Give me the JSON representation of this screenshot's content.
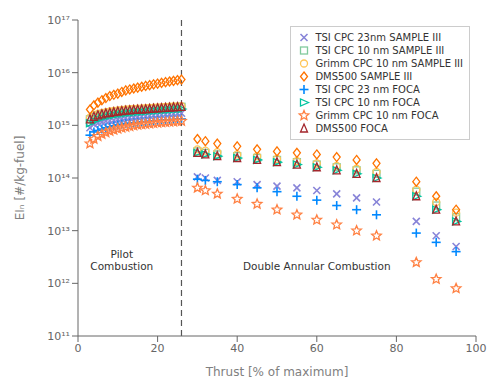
{
  "chart_data": {
    "type": "scatter",
    "xlabel": "Thrust [% of maximum]",
    "ylabel": "EIₙ [#/kg-fuel]",
    "xlim": [
      0,
      100
    ],
    "xticks": [
      0,
      20,
      40,
      60,
      80,
      100
    ],
    "ylim": [
      100000000000.0,
      1e+17
    ],
    "yticks": [
      {
        "value": 100000000000.0,
        "label": "10¹¹"
      },
      {
        "value": 1000000000000.0,
        "label": "10¹²"
      },
      {
        "value": 10000000000000.0,
        "label": "10¹³"
      },
      {
        "value": 100000000000000.0,
        "label": "10¹⁴"
      },
      {
        "value": 1000000000000000.0,
        "label": "10¹⁵"
      },
      {
        "value": 1e+16,
        "label": "10¹⁶"
      },
      {
        "value": 1e+17,
        "label": "10¹⁷"
      }
    ],
    "log": "y",
    "grid": false,
    "legend": "upper right",
    "reference_lines": [
      {
        "x": 26,
        "line_style": "dashed"
      }
    ],
    "annotations": [
      {
        "text": "Pilot\nCombustion",
        "x": 11,
        "y": 1600000000000.0
      },
      {
        "text": "Double Annular Combustion",
        "x": 60,
        "y": 1600000000000.0
      }
    ],
    "series": [
      {
        "name": "TSI CPC 23nm SAMPLE III",
        "marker": "x",
        "color": "#8884d8",
        "x": [
          3,
          4,
          5,
          6,
          7,
          8,
          9,
          10,
          11,
          12,
          13,
          14,
          15,
          16,
          17,
          18,
          19,
          20,
          21,
          22,
          23,
          24,
          25,
          26,
          30,
          32,
          35,
          40,
          45,
          50,
          55,
          60,
          65,
          70,
          75,
          85,
          90,
          95
        ],
        "values": [
          900000000000000.0,
          1050000000000000.0,
          1100000000000000.0,
          1150000000000000.0,
          1200000000000000.0,
          1220000000000000.0,
          1250000000000000.0,
          1300000000000000.0,
          1330000000000000.0,
          1380000000000000.0,
          1400000000000000.0,
          1420000000000000.0,
          1450000000000000.0,
          1470000000000000.0,
          1500000000000000.0,
          1520000000000000.0,
          1550000000000000.0,
          1570000000000000.0,
          1590000000000000.0,
          1620000000000000.0,
          1640000000000000.0,
          1660000000000000.0,
          1680000000000000.0,
          1700000000000000.0,
          105000000000000.0,
          100000000000000.0,
          90000000000000.0,
          85000000000000.0,
          75000000000000.0,
          70000000000000.0,
          65000000000000.0,
          58000000000000.0,
          50000000000000.0,
          42000000000000.0,
          35000000000000.0,
          15000000000000.0,
          8000000000000.0,
          5000000000000.0
        ]
      },
      {
        "name": "TSI CPC 10 nm SAMPLE III",
        "marker": "square",
        "color": "#82ca9d",
        "x": [
          3,
          4,
          5,
          6,
          7,
          8,
          9,
          10,
          11,
          12,
          13,
          14,
          15,
          16,
          17,
          18,
          19,
          20,
          21,
          22,
          23,
          24,
          25,
          26,
          30,
          32,
          35,
          40,
          45,
          50,
          55,
          60,
          65,
          70,
          75,
          85,
          90,
          95
        ],
        "values": [
          1300000000000000.0,
          1450000000000000.0,
          1550000000000000.0,
          1620000000000000.0,
          1680000000000000.0,
          1730000000000000.0,
          1780000000000000.0,
          1830000000000000.0,
          1870000000000000.0,
          1900000000000000.0,
          1930000000000000.0,
          1960000000000000.0,
          1980000000000000.0,
          2000000000000000.0,
          2020000000000000.0,
          2050000000000000.0,
          2070000000000000.0,
          2100000000000000.0,
          2120000000000000.0,
          2150000000000000.0,
          2170000000000000.0,
          2200000000000000.0,
          2220000000000000.0,
          2250000000000000.0,
          320000000000000.0,
          300000000000000.0,
          280000000000000.0,
          260000000000000.0,
          240000000000000.0,
          220000000000000.0,
          200000000000000.0,
          180000000000000.0,
          160000000000000.0,
          140000000000000.0,
          120000000000000.0,
          55000000000000.0,
          30000000000000.0,
          18000000000000.0
        ]
      },
      {
        "name": "Grimm CPC 10 nm SAMPLE III",
        "marker": "circle",
        "color": "#ffc658",
        "x": [
          3,
          4,
          5,
          6,
          7,
          8,
          9,
          10,
          11,
          12,
          13,
          14,
          15,
          16,
          17,
          18,
          19,
          20,
          21,
          22,
          23,
          24,
          25,
          26,
          30,
          32,
          35,
          40,
          45,
          50,
          55,
          60,
          65,
          70,
          75,
          85,
          90,
          95
        ],
        "values": [
          1400000000000000.0,
          1550000000000000.0,
          1650000000000000.0,
          1720000000000000.0,
          1780000000000000.0,
          1830000000000000.0,
          1880000000000000.0,
          1920000000000000.0,
          1960000000000000.0,
          2000000000000000.0,
          2030000000000000.0,
          2060000000000000.0,
          2080000000000000.0,
          2100000000000000.0,
          2130000000000000.0,
          2150000000000000.0,
          2170000000000000.0,
          2200000000000000.0,
          2220000000000000.0,
          2240000000000000.0,
          2260000000000000.0,
          2280000000000000.0,
          2300000000000000.0,
          2320000000000000.0,
          350000000000000.0,
          330000000000000.0,
          310000000000000.0,
          280000000000000.0,
          260000000000000.0,
          230000000000000.0,
          210000000000000.0,
          190000000000000.0,
          170000000000000.0,
          150000000000000.0,
          130000000000000.0,
          60000000000000.0,
          35000000000000.0,
          22000000000000.0
        ]
      },
      {
        "name": "DMS500 SAMPLE III",
        "marker": "diamond",
        "color": "#ff7300",
        "x": [
          3,
          4,
          5,
          6,
          7,
          8,
          9,
          10,
          11,
          12,
          13,
          14,
          15,
          16,
          17,
          18,
          19,
          20,
          21,
          22,
          23,
          24,
          25,
          26,
          30,
          32,
          35,
          40,
          45,
          50,
          55,
          60,
          65,
          70,
          75,
          85,
          90,
          95
        ],
        "values": [
          2000000000000000.0,
          2400000000000000.0,
          2700000000000000.0,
          3000000000000000.0,
          3300000000000000.0,
          3600000000000000.0,
          3800000000000000.0,
          4000000000000000.0,
          4300000000000000.0,
          4600000000000000.0,
          4800000000000000.0,
          5000000000000000.0,
          5200000000000000.0,
          5400000000000000.0,
          5600000000000000.0,
          5800000000000000.0,
          6000000000000000.0,
          6200000000000000.0,
          6400000000000000.0,
          6600000000000000.0,
          6800000000000000.0,
          7000000000000000.0,
          7200000000000000.0,
          7400000000000000.0,
          550000000000000.0,
          500000000000000.0,
          450000000000000.0,
          400000000000000.0,
          350000000000000.0,
          320000000000000.0,
          300000000000000.0,
          280000000000000.0,
          250000000000000.0,
          220000000000000.0,
          190000000000000.0,
          85000000000000.0,
          45000000000000.0,
          25000000000000.0
        ]
      },
      {
        "name": "TSI CPC 23 nm FOCA",
        "marker": "plus",
        "color": "#0088fe",
        "x": [
          3,
          4,
          5,
          6,
          7,
          8,
          9,
          10,
          11,
          12,
          13,
          14,
          15,
          16,
          17,
          18,
          19,
          20,
          21,
          22,
          23,
          24,
          25,
          26,
          30,
          32,
          35,
          40,
          45,
          50,
          55,
          60,
          65,
          70,
          75,
          85,
          90,
          95
        ],
        "values": [
          650000000000000.0,
          750000000000000.0,
          800000000000000.0,
          850000000000000.0,
          900000000000000.0,
          940000000000000.0,
          980000000000000.0,
          1020000000000000.0,
          1050000000000000.0,
          1080000000000000.0,
          1100000000000000.0,
          1120000000000000.0,
          1140000000000000.0,
          1160000000000000.0,
          1180000000000000.0,
          1200000000000000.0,
          1220000000000000.0,
          1240000000000000.0,
          1250000000000000.0,
          1270000000000000.0,
          1280000000000000.0,
          1300000000000000.0,
          1310000000000000.0,
          1320000000000000.0,
          95000000000000.0,
          90000000000000.0,
          85000000000000.0,
          75000000000000.0,
          65000000000000.0,
          55000000000000.0,
          45000000000000.0,
          38000000000000.0,
          30000000000000.0,
          25000000000000.0,
          20000000000000.0,
          9000000000000.0,
          6000000000000.0,
          4000000000000.0
        ]
      },
      {
        "name": "TSI CPC 10 nm FOCA",
        "marker": "triangle-right",
        "color": "#00c49f",
        "x": [
          3,
          4,
          5,
          6,
          7,
          8,
          9,
          10,
          11,
          12,
          13,
          14,
          15,
          16,
          17,
          18,
          19,
          20,
          21,
          22,
          23,
          24,
          25,
          26,
          30,
          32,
          35,
          40,
          45,
          50,
          55,
          60,
          65,
          70,
          75,
          85,
          90,
          95
        ],
        "values": [
          1100000000000000.0,
          1220000000000000.0,
          1320000000000000.0,
          1400000000000000.0,
          1470000000000000.0,
          1520000000000000.0,
          1570000000000000.0,
          1620000000000000.0,
          1660000000000000.0,
          1700000000000000.0,
          1730000000000000.0,
          1760000000000000.0,
          1790000000000000.0,
          1820000000000000.0,
          1840000000000000.0,
          1870000000000000.0,
          1900000000000000.0,
          1920000000000000.0,
          1940000000000000.0,
          1960000000000000.0,
          1980000000000000.0,
          2000000000000000.0,
          2020000000000000.0,
          2040000000000000.0,
          300000000000000.0,
          280000000000000.0,
          260000000000000.0,
          240000000000000.0,
          220000000000000.0,
          200000000000000.0,
          180000000000000.0,
          160000000000000.0,
          140000000000000.0,
          120000000000000.0,
          100000000000000.0,
          45000000000000.0,
          25000000000000.0,
          15000000000000.0
        ]
      },
      {
        "name": "Grimm CPC 10 nm FOCA",
        "marker": "star",
        "color": "#ff8042",
        "x": [
          3,
          4,
          5,
          6,
          7,
          8,
          9,
          10,
          11,
          12,
          13,
          14,
          15,
          16,
          17,
          18,
          19,
          20,
          21,
          22,
          23,
          24,
          25,
          26,
          30,
          32,
          35,
          40,
          45,
          50,
          55,
          60,
          65,
          70,
          75,
          85,
          90,
          95
        ],
        "values": [
          450000000000000.0,
          550000000000000.0,
          620000000000000.0,
          680000000000000.0,
          730000000000000.0,
          780000000000000.0,
          820000000000000.0,
          860000000000000.0,
          900000000000000.0,
          930000000000000.0,
          960000000000000.0,
          990000000000000.0,
          1020000000000000.0,
          1040000000000000.0,
          1060000000000000.0,
          1080000000000000.0,
          1100000000000000.0,
          1120000000000000.0,
          1140000000000000.0,
          1150000000000000.0,
          1170000000000000.0,
          1180000000000000.0,
          1200000000000000.0,
          1210000000000000.0,
          65000000000000.0,
          58000000000000.0,
          50000000000000.0,
          40000000000000.0,
          32000000000000.0,
          25000000000000.0,
          20000000000000.0,
          16000000000000.0,
          13000000000000.0,
          10000000000000.0,
          8000000000000.0,
          2500000000000.0,
          1200000000000.0,
          800000000000.0
        ]
      },
      {
        "name": "DMS500 FOCA",
        "marker": "triangle",
        "color": "#a4262c",
        "x": [
          3,
          4,
          5,
          6,
          7,
          8,
          9,
          10,
          11,
          12,
          13,
          14,
          15,
          16,
          17,
          18,
          19,
          20,
          21,
          22,
          23,
          24,
          25,
          26,
          30,
          32,
          35,
          40,
          45,
          50,
          55,
          60,
          65,
          70,
          75,
          85,
          90,
          95
        ],
        "values": [
          1300000000000000.0,
          1450000000000000.0,
          1550000000000000.0,
          1620000000000000.0,
          1680000000000000.0,
          1730000000000000.0,
          1780000000000000.0,
          1830000000000000.0,
          1870000000000000.0,
          1900000000000000.0,
          1930000000000000.0,
          1960000000000000.0,
          1980000000000000.0,
          2000000000000000.0,
          2020000000000000.0,
          2050000000000000.0,
          2070000000000000.0,
          2100000000000000.0,
          2120000000000000.0,
          2150000000000000.0,
          2170000000000000.0,
          2200000000000000.0,
          2220000000000000.0,
          2250000000000000.0,
          300000000000000.0,
          280000000000000.0,
          260000000000000.0,
          240000000000000.0,
          220000000000000.0,
          200000000000000.0,
          180000000000000.0,
          160000000000000.0,
          140000000000000.0,
          120000000000000.0,
          100000000000000.0,
          45000000000000.0,
          25000000000000.0,
          15000000000000.0
        ]
      }
    ]
  }
}
